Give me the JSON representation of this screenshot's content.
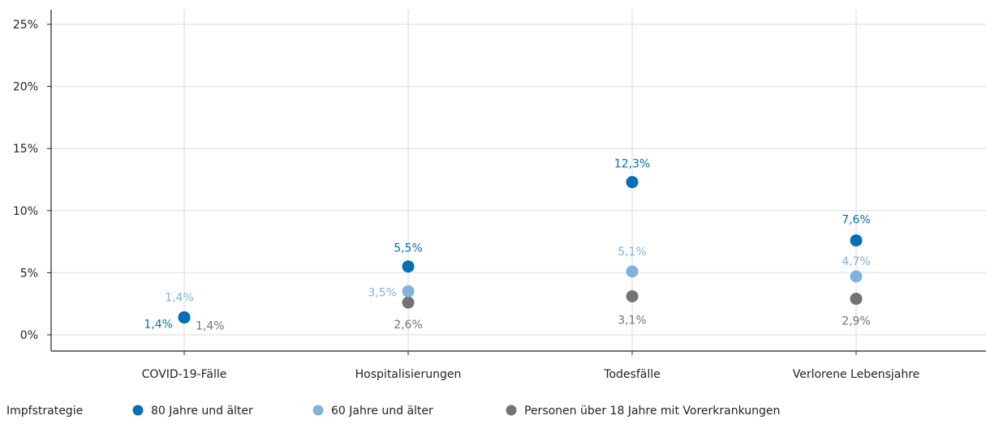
{
  "chart_data": {
    "type": "scatter",
    "categories": [
      "COVID-19-Fälle",
      "Hospitalisierungen",
      "Todesfälle",
      "Verlorene Lebensjahre"
    ],
    "ylim": [
      0,
      25
    ],
    "yticks": [
      0,
      5,
      10,
      15,
      20,
      25
    ],
    "ytick_labels": [
      "0%",
      "5%",
      "10%",
      "15%",
      "20%",
      "25%"
    ],
    "grid": true,
    "legend_placement": "bottom-left",
    "legend_title": "Impfstrategie",
    "series": [
      {
        "name": "80 Jahre und älter",
        "color": "#0070b8",
        "values": [
          1.4,
          5.5,
          12.3,
          7.6
        ],
        "labels": [
          "1,4%",
          "5,5%",
          "12,3%",
          "7,6%"
        ]
      },
      {
        "name": "60 Jahre und älter",
        "color": "#7fb3de",
        "values": [
          1.4,
          3.5,
          5.1,
          4.7
        ],
        "labels": [
          "1,4%",
          "3,5%",
          "5,1%",
          "4,7%"
        ]
      },
      {
        "name": "Personen über 18 Jahre mit Vorerkrankungen",
        "color": "#737373",
        "values": [
          1.4,
          2.6,
          3.1,
          2.9
        ],
        "labels": [
          "1,4%",
          "2,6%",
          "3,1%",
          "2,9%"
        ]
      }
    ]
  }
}
